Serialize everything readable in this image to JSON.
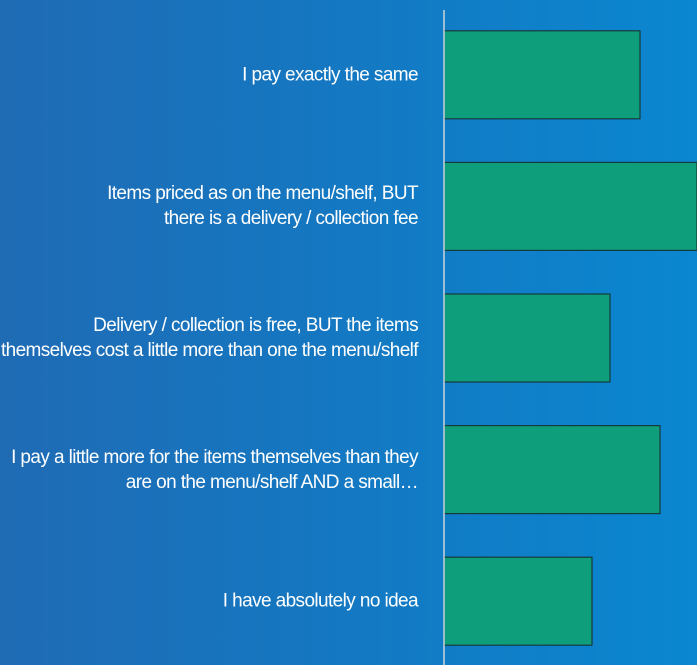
{
  "chart_data": {
    "type": "bar",
    "orientation": "horizontal",
    "categories": [
      "I pay exactly the same",
      "Items priced as on the menu/shelf, BUT there is a delivery / collection fee",
      "Delivery / collection is free, BUT the items themselves cost a little more than one the menu/shelf",
      "I pay a little more for the items themselves than they are on the menu/shelf AND a small…",
      "I have absolutely no idea"
    ],
    "values": [
      196,
      253,
      166,
      216,
      148
    ],
    "xlim": [
      0,
      253
    ],
    "color": "#0f9e7b"
  }
}
